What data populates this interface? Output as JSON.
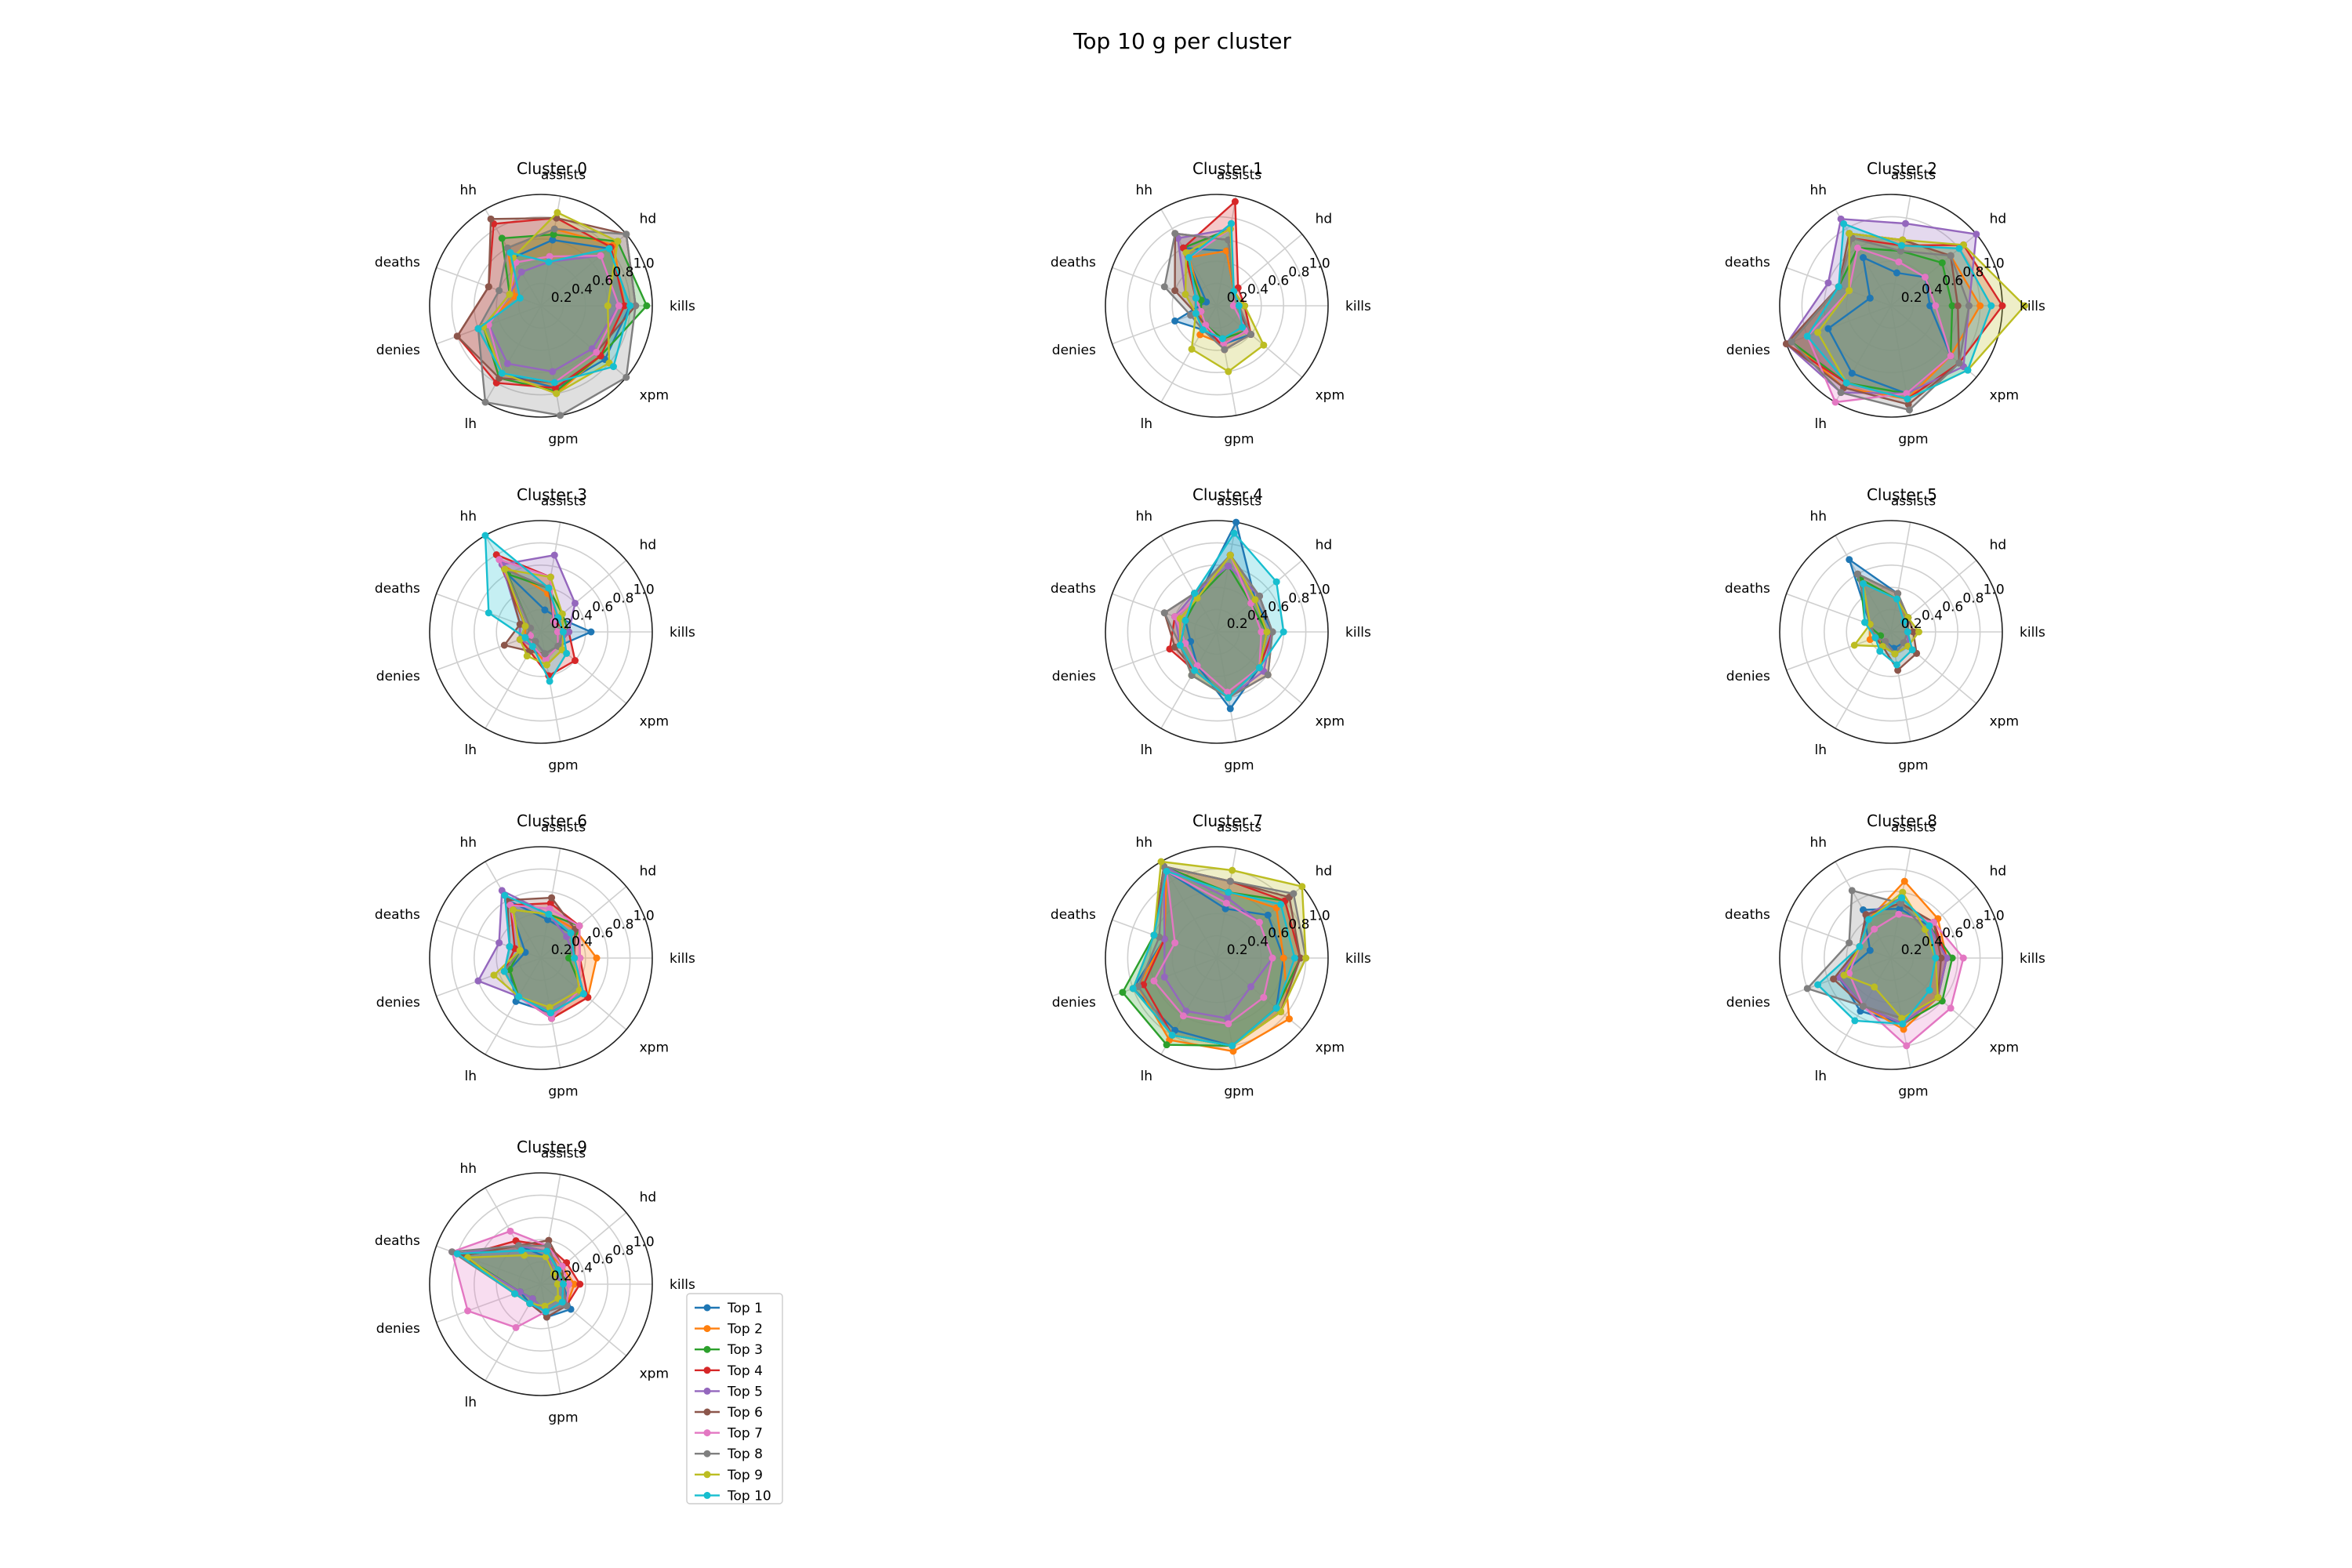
{
  "figure": {
    "title": "Top 10 g per cluster"
  },
  "chart_data": {
    "type": "radar",
    "axes": [
      "kills",
      "hd",
      "assists",
      "hh",
      "deaths",
      "denies",
      "lh",
      "gpm",
      "xpm"
    ],
    "rticks": [
      "0.2",
      "0.4",
      "0.6",
      "0.8",
      "1.0"
    ],
    "ylim": [
      0,
      1
    ],
    "series_names": [
      "Top 1",
      "Top 2",
      "Top 3",
      "Top 4",
      "Top 5",
      "Top 6",
      "Top 7",
      "Top 8",
      "Top 9",
      "Top 10"
    ],
    "colors": [
      "#1f77b4",
      "#ff7f0e",
      "#2ca02c",
      "#d62728",
      "#9467bd",
      "#8c564b",
      "#e377c2",
      "#7f7f7f",
      "#bcbd22",
      "#17becf"
    ],
    "legend_position": "right of Cluster 9",
    "clusters": [
      {
        "title": "Cluster 0",
        "series": [
          [
            0.8,
            0.8,
            0.6,
            0.5,
            0.3,
            0.5,
            0.7,
            0.75,
            0.75
          ],
          [
            0.75,
            0.85,
            0.7,
            0.6,
            0.25,
            0.55,
            0.7,
            0.8,
            0.7
          ],
          [
            0.95,
            0.9,
            0.65,
            0.7,
            0.3,
            0.55,
            0.75,
            0.78,
            0.7
          ],
          [
            0.75,
            0.82,
            0.8,
            0.85,
            0.5,
            0.8,
            0.8,
            0.75,
            0.7
          ],
          [
            0.7,
            0.7,
            0.4,
            0.35,
            0.3,
            0.5,
            0.6,
            0.6,
            0.6
          ],
          [
            0.85,
            1.0,
            0.8,
            0.9,
            0.5,
            0.8,
            0.75,
            0.7,
            0.65
          ],
          [
            0.7,
            0.7,
            0.45,
            0.45,
            0.3,
            0.5,
            0.7,
            0.7,
            0.65
          ],
          [
            0.85,
            1.0,
            0.7,
            0.6,
            0.4,
            0.6,
            1.0,
            1.0,
            1.0
          ],
          [
            0.6,
            0.9,
            0.85,
            0.5,
            0.3,
            0.55,
            0.7,
            0.8,
            0.8
          ],
          [
            0.8,
            0.8,
            0.4,
            0.55,
            0.2,
            0.6,
            0.7,
            0.7,
            0.85
          ]
        ]
      },
      {
        "title": "Cluster 1",
        "series": [
          [
            0.25,
            0.2,
            0.5,
            0.6,
            0.1,
            0.4,
            0.25,
            0.35,
            0.4
          ],
          [
            0.2,
            0.2,
            0.5,
            0.5,
            0.15,
            0.15,
            0.3,
            0.35,
            0.35
          ],
          [
            0.2,
            0.2,
            0.7,
            0.6,
            0.15,
            0.15,
            0.2,
            0.3,
            0.35
          ],
          [
            0.25,
            0.25,
            0.95,
            0.6,
            0.2,
            0.2,
            0.2,
            0.4,
            0.4
          ],
          [
            0.2,
            0.2,
            0.7,
            0.7,
            0.3,
            0.2,
            0.2,
            0.35,
            0.35
          ],
          [
            0.2,
            0.2,
            0.6,
            0.75,
            0.4,
            0.2,
            0.2,
            0.35,
            0.35
          ],
          [
            0.15,
            0.2,
            0.7,
            0.5,
            0.2,
            0.15,
            0.2,
            0.35,
            0.35
          ],
          [
            0.2,
            0.2,
            0.6,
            0.75,
            0.5,
            0.25,
            0.25,
            0.4,
            0.4
          ],
          [
            0.25,
            0.2,
            0.7,
            0.55,
            0.3,
            0.2,
            0.45,
            0.6,
            0.55
          ],
          [
            0.2,
            0.2,
            0.75,
            0.5,
            0.2,
            0.2,
            0.25,
            0.3,
            0.3
          ]
        ]
      },
      {
        "title": "Cluster 2",
        "series": [
          [
            0.35,
            0.4,
            0.3,
            0.5,
            0.2,
            0.6,
            0.7,
            0.8,
            0.7
          ],
          [
            0.8,
            0.7,
            0.6,
            0.75,
            0.5,
            0.95,
            0.85,
            0.85,
            0.7
          ],
          [
            0.55,
            0.6,
            0.5,
            0.6,
            0.5,
            0.95,
            0.8,
            0.8,
            0.7
          ],
          [
            1.0,
            0.85,
            0.55,
            0.7,
            0.5,
            1.0,
            0.8,
            0.85,
            0.8
          ],
          [
            0.7,
            1.0,
            0.75,
            0.9,
            0.6,
            1.0,
            0.9,
            0.8,
            0.85
          ],
          [
            0.6,
            0.7,
            0.6,
            0.75,
            0.5,
            1.0,
            0.85,
            0.9,
            0.8
          ],
          [
            0.4,
            0.4,
            0.4,
            0.6,
            0.4,
            0.8,
            1.0,
            0.8,
            0.7
          ],
          [
            0.7,
            0.7,
            0.5,
            0.7,
            0.5,
            0.95,
            0.9,
            0.95,
            0.8
          ],
          [
            1.2,
            0.85,
            0.6,
            0.75,
            0.4,
            0.7,
            0.8,
            0.85,
            0.9
          ],
          [
            0.9,
            0.8,
            0.55,
            0.85,
            0.5,
            0.8,
            0.8,
            0.85,
            0.9
          ]
        ]
      },
      {
        "title": "Cluster 3",
        "series": [
          [
            0.45,
            0.2,
            0.2,
            0.6,
            0.15,
            0.15,
            0.1,
            0.2,
            0.2
          ],
          [
            0.2,
            0.2,
            0.35,
            0.7,
            0.15,
            0.15,
            0.15,
            0.3,
            0.25
          ],
          [
            0.25,
            0.25,
            0.4,
            0.6,
            0.1,
            0.1,
            0.15,
            0.25,
            0.2
          ],
          [
            0.25,
            0.15,
            0.5,
            0.8,
            0.15,
            0.2,
            0.2,
            0.4,
            0.4
          ],
          [
            0.25,
            0.4,
            0.7,
            0.7,
            0.2,
            0.2,
            0.15,
            0.25,
            0.2
          ],
          [
            0.15,
            0.15,
            0.4,
            0.65,
            0.2,
            0.35,
            0.2,
            0.2,
            0.2
          ],
          [
            0.15,
            0.15,
            0.5,
            0.75,
            0.1,
            0.1,
            0.15,
            0.25,
            0.2
          ],
          [
            0.2,
            0.2,
            0.4,
            0.65,
            0.1,
            0.15,
            0.1,
            0.2,
            0.2
          ],
          [
            0.2,
            0.25,
            0.5,
            0.65,
            0.15,
            0.2,
            0.25,
            0.3,
            0.25
          ],
          [
            0.2,
            0.2,
            0.4,
            1.0,
            0.5,
            0.15,
            0.15,
            0.45,
            0.3
          ]
        ]
      },
      {
        "title": "Cluster 4",
        "series": [
          [
            0.5,
            0.45,
            1.0,
            0.35,
            0.3,
            0.25,
            0.35,
            0.7,
            0.5
          ],
          [
            0.5,
            0.5,
            0.7,
            0.4,
            0.3,
            0.35,
            0.45,
            0.6,
            0.6
          ],
          [
            0.45,
            0.4,
            0.6,
            0.35,
            0.3,
            0.35,
            0.45,
            0.6,
            0.5
          ],
          [
            0.5,
            0.5,
            0.7,
            0.35,
            0.4,
            0.45,
            0.4,
            0.6,
            0.5
          ],
          [
            0.5,
            0.5,
            0.6,
            0.4,
            0.4,
            0.35,
            0.4,
            0.6,
            0.55
          ],
          [
            0.45,
            0.45,
            0.7,
            0.4,
            0.5,
            0.4,
            0.4,
            0.6,
            0.5
          ],
          [
            0.4,
            0.4,
            0.7,
            0.35,
            0.4,
            0.3,
            0.35,
            0.55,
            0.5
          ],
          [
            0.5,
            0.5,
            0.7,
            0.4,
            0.5,
            0.35,
            0.45,
            0.6,
            0.6
          ],
          [
            0.45,
            0.45,
            0.7,
            0.35,
            0.35,
            0.35,
            0.4,
            0.6,
            0.5
          ],
          [
            0.6,
            0.7,
            0.9,
            0.4,
            0.3,
            0.35,
            0.4,
            0.6,
            0.5
          ]
        ]
      },
      {
        "title": "Cluster 5",
        "series": [
          [
            0.15,
            0.2,
            0.35,
            0.75,
            0.2,
            0.15,
            0.1,
            0.15,
            0.15
          ],
          [
            0.15,
            0.2,
            0.35,
            0.6,
            0.2,
            0.2,
            0.1,
            0.2,
            0.15
          ],
          [
            0.15,
            0.2,
            0.3,
            0.55,
            0.25,
            0.1,
            0.15,
            0.2,
            0.15
          ],
          [
            0.15,
            0.2,
            0.3,
            0.5,
            0.2,
            0.15,
            0.15,
            0.2,
            0.2
          ],
          [
            0.15,
            0.2,
            0.3,
            0.5,
            0.2,
            0.15,
            0.15,
            0.2,
            0.2
          ],
          [
            0.2,
            0.2,
            0.35,
            0.6,
            0.2,
            0.15,
            0.15,
            0.35,
            0.3
          ],
          [
            0.15,
            0.15,
            0.3,
            0.5,
            0.2,
            0.15,
            0.1,
            0.2,
            0.15
          ],
          [
            0.15,
            0.2,
            0.35,
            0.6,
            0.2,
            0.15,
            0.1,
            0.2,
            0.15
          ],
          [
            0.25,
            0.2,
            0.3,
            0.5,
            0.2,
            0.35,
            0.15,
            0.2,
            0.2
          ],
          [
            0.15,
            0.15,
            0.3,
            0.5,
            0.25,
            0.15,
            0.2,
            0.3,
            0.25
          ]
        ]
      },
      {
        "title": "Cluster 6",
        "series": [
          [
            0.3,
            0.35,
            0.35,
            0.6,
            0.15,
            0.3,
            0.45,
            0.5,
            0.5
          ],
          [
            0.5,
            0.4,
            0.4,
            0.5,
            0.2,
            0.3,
            0.4,
            0.55,
            0.55
          ],
          [
            0.25,
            0.45,
            0.4,
            0.5,
            0.2,
            0.3,
            0.4,
            0.5,
            0.5
          ],
          [
            0.35,
            0.45,
            0.5,
            0.55,
            0.25,
            0.35,
            0.4,
            0.55,
            0.55
          ],
          [
            0.3,
            0.3,
            0.4,
            0.7,
            0.4,
            0.6,
            0.4,
            0.55,
            0.45
          ],
          [
            0.3,
            0.4,
            0.55,
            0.6,
            0.3,
            0.35,
            0.4,
            0.55,
            0.45
          ],
          [
            0.35,
            0.45,
            0.45,
            0.55,
            0.2,
            0.35,
            0.4,
            0.55,
            0.45
          ],
          [
            0.3,
            0.35,
            0.4,
            0.5,
            0.2,
            0.35,
            0.4,
            0.45,
            0.45
          ],
          [
            0.3,
            0.35,
            0.4,
            0.5,
            0.2,
            0.45,
            0.4,
            0.45,
            0.45
          ],
          [
            0.3,
            0.35,
            0.4,
            0.65,
            0.3,
            0.35,
            0.4,
            0.5,
            0.5
          ]
        ]
      },
      {
        "title": "Cluster 7",
        "series": [
          [
            0.6,
            0.6,
            0.45,
            0.9,
            0.5,
            0.8,
            0.75,
            0.8,
            0.7
          ],
          [
            0.6,
            0.7,
            0.6,
            0.9,
            0.5,
            0.75,
            0.85,
            0.85,
            0.85
          ],
          [
            0.75,
            0.8,
            0.6,
            0.95,
            0.6,
            0.9,
            0.9,
            0.8,
            0.7
          ],
          [
            0.75,
            0.8,
            0.7,
            0.95,
            0.5,
            0.7,
            0.8,
            0.8,
            0.75
          ],
          [
            0.5,
            0.5,
            0.55,
            0.95,
            0.5,
            0.5,
            0.55,
            0.55,
            0.4
          ],
          [
            0.75,
            0.85,
            0.7,
            0.95,
            0.6,
            0.8,
            0.8,
            0.8,
            0.75
          ],
          [
            0.5,
            0.5,
            0.5,
            0.9,
            0.4,
            0.6,
            0.6,
            0.6,
            0.55
          ],
          [
            0.8,
            0.9,
            0.7,
            0.95,
            0.55,
            0.75,
            0.8,
            0.8,
            0.75
          ],
          [
            0.8,
            1.0,
            0.8,
            1.0,
            0.6,
            0.8,
            0.8,
            0.8,
            0.75
          ],
          [
            0.7,
            0.75,
            0.6,
            0.9,
            0.6,
            0.8,
            0.8,
            0.8,
            0.7
          ]
        ]
      },
      {
        "title": "Cluster 8",
        "series": [
          [
            0.5,
            0.45,
            0.45,
            0.5,
            0.2,
            0.5,
            0.55,
            0.6,
            0.55
          ],
          [
            0.5,
            0.55,
            0.7,
            0.4,
            0.3,
            0.5,
            0.5,
            0.65,
            0.55
          ],
          [
            0.55,
            0.45,
            0.55,
            0.45,
            0.3,
            0.5,
            0.5,
            0.6,
            0.6
          ],
          [
            0.5,
            0.5,
            0.5,
            0.45,
            0.3,
            0.5,
            0.5,
            0.6,
            0.55
          ],
          [
            0.5,
            0.45,
            0.55,
            0.45,
            0.3,
            0.5,
            0.5,
            0.6,
            0.55
          ],
          [
            0.45,
            0.5,
            0.5,
            0.45,
            0.3,
            0.55,
            0.5,
            0.55,
            0.55
          ],
          [
            0.65,
            0.5,
            0.4,
            0.3,
            0.3,
            0.4,
            0.5,
            0.8,
            0.7
          ],
          [
            0.4,
            0.4,
            0.5,
            0.7,
            0.4,
            0.8,
            0.5,
            0.55,
            0.55
          ],
          [
            0.4,
            0.4,
            0.6,
            0.4,
            0.3,
            0.45,
            0.3,
            0.55,
            0.55
          ],
          [
            0.4,
            0.45,
            0.55,
            0.4,
            0.3,
            0.7,
            0.65,
            0.6,
            0.45
          ]
        ]
      },
      {
        "title": "Cluster 9",
        "series": [
          [
            0.2,
            0.15,
            0.25,
            0.4,
            0.8,
            0.2,
            0.2,
            0.3,
            0.35
          ],
          [
            0.3,
            0.25,
            0.3,
            0.4,
            0.8,
            0.25,
            0.2,
            0.25,
            0.3
          ],
          [
            0.25,
            0.2,
            0.3,
            0.4,
            0.75,
            0.2,
            0.15,
            0.25,
            0.3
          ],
          [
            0.35,
            0.3,
            0.35,
            0.45,
            0.75,
            0.25,
            0.2,
            0.25,
            0.3
          ],
          [
            0.2,
            0.15,
            0.3,
            0.4,
            0.8,
            0.2,
            0.15,
            0.25,
            0.25
          ],
          [
            0.2,
            0.25,
            0.4,
            0.4,
            0.75,
            0.25,
            0.2,
            0.3,
            0.3
          ],
          [
            0.25,
            0.25,
            0.35,
            0.55,
            0.85,
            0.7,
            0.45,
            0.25,
            0.3
          ],
          [
            0.2,
            0.2,
            0.35,
            0.4,
            0.85,
            0.25,
            0.2,
            0.25,
            0.3
          ],
          [
            0.15,
            0.15,
            0.25,
            0.3,
            0.7,
            0.25,
            0.2,
            0.2,
            0.2
          ],
          [
            0.2,
            0.2,
            0.3,
            0.35,
            0.8,
            0.25,
            0.2,
            0.25,
            0.25
          ]
        ]
      }
    ]
  }
}
